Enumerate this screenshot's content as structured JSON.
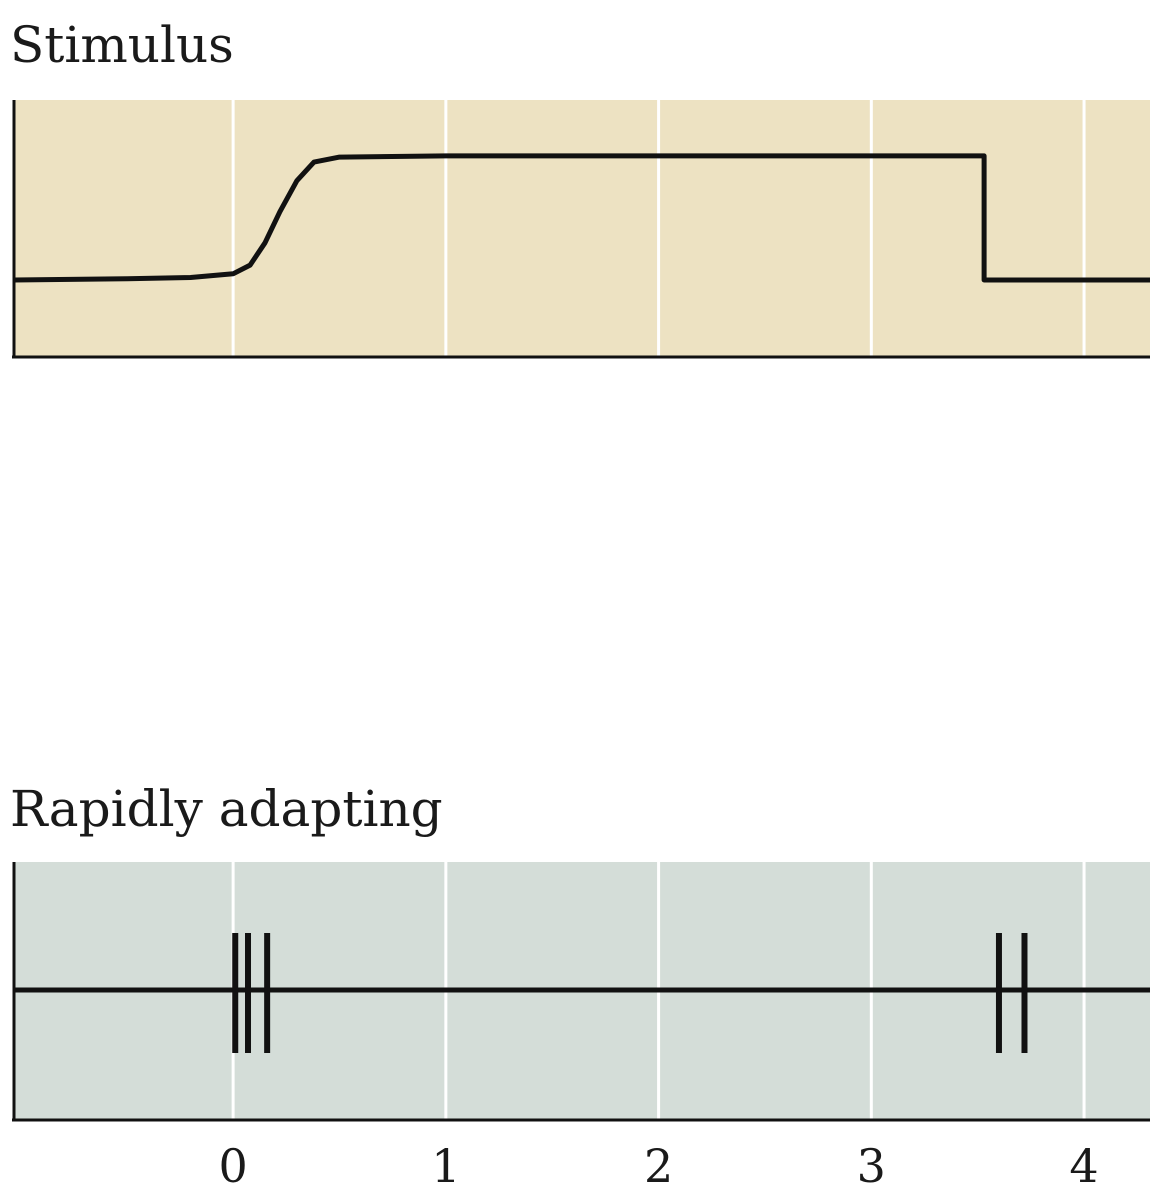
{
  "chart_data": [
    {
      "type": "line",
      "title": "Stimulus",
      "xlim": [
        -1.03,
        4.31
      ],
      "gridlines_x": [
        0,
        1,
        2,
        3,
        4
      ],
      "grid": true,
      "background": "#ede2c2",
      "line_color": "#111111",
      "series": [
        {
          "points": [
            [
              -1.03,
              0.0
            ],
            [
              -0.5,
              0.01
            ],
            [
              -0.2,
              0.02
            ],
            [
              0.0,
              0.05
            ],
            [
              0.08,
              0.12
            ],
            [
              0.15,
              0.3
            ],
            [
              0.22,
              0.55
            ],
            [
              0.3,
              0.8
            ],
            [
              0.38,
              0.95
            ],
            [
              0.5,
              0.99
            ],
            [
              1.0,
              1.0
            ],
            [
              3.53,
              1.0
            ],
            [
              3.53,
              0.0
            ],
            [
              4.31,
              0.0
            ]
          ]
        }
      ],
      "ylim": [
        -0.62,
        1.45
      ]
    },
    {
      "type": "spike_raster",
      "title": "Rapidly adapting",
      "xlim": [
        -1.03,
        4.31
      ],
      "x_ticks": [
        "0",
        "1",
        "2",
        "3",
        "4"
      ],
      "x_tick_values": [
        0,
        1,
        2,
        3,
        4
      ],
      "gridlines_x": [
        0,
        1,
        2,
        3,
        4
      ],
      "grid": true,
      "background": "#d4ddd8",
      "line_color": "#111111",
      "spikes": [
        0.01,
        0.07,
        0.16,
        3.6,
        3.72
      ]
    }
  ]
}
